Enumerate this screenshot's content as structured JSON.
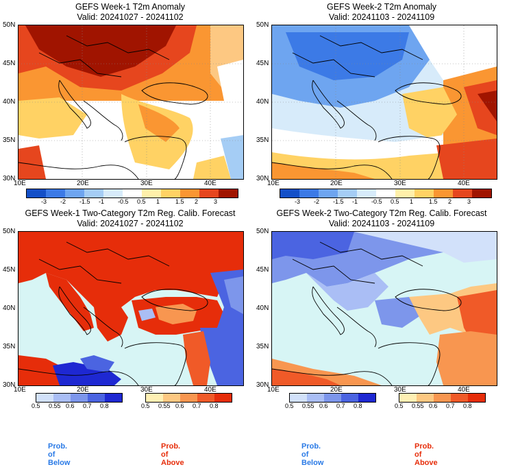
{
  "chart_data": [
    {
      "type": "heatmap",
      "title": "GEFS Week-1 T2m Anomaly",
      "subtitle": "Valid: 20241027 - 20241102",
      "x_ticks": [
        "10E",
        "20E",
        "30E",
        "40E"
      ],
      "y_ticks": [
        "30N",
        "35N",
        "40N",
        "45N",
        "50N"
      ],
      "colorbar_ticks": [
        "-3",
        "-2",
        "-1.5",
        "-1",
        "-0.5",
        "0.5",
        "1",
        "1.5",
        "2",
        "3"
      ],
      "colorbar_colors": [
        "#1450c8",
        "#3c7ae6",
        "#6ea5f0",
        "#a5cdf5",
        "#d7ebfa",
        "#ffffff",
        "#fff0aa",
        "#ffd264",
        "#fa9632",
        "#e6461e",
        "#a01400"
      ]
    },
    {
      "type": "heatmap",
      "title": "GEFS Week-2 T2m Anomaly",
      "subtitle": "Valid: 20241103 - 20241109",
      "x_ticks": [
        "10E",
        "20E",
        "30E",
        "40E"
      ],
      "y_ticks": [
        "30N",
        "35N",
        "40N",
        "45N",
        "50N"
      ],
      "colorbar_ticks": [
        "-3",
        "-2",
        "-1.5",
        "-1",
        "-0.5",
        "0.5",
        "1",
        "1.5",
        "2",
        "3"
      ],
      "colorbar_colors": [
        "#1450c8",
        "#3c7ae6",
        "#6ea5f0",
        "#a5cdf5",
        "#d7ebfa",
        "#ffffff",
        "#fff0aa",
        "#ffd264",
        "#fa9632",
        "#e6461e",
        "#a01400"
      ]
    },
    {
      "type": "heatmap",
      "title": "GEFS Week-1 Two-Category T2m Reg. Calib. Forecast",
      "subtitle": "Valid: 20241027 - 20241102",
      "x_ticks": [
        "10E",
        "20E",
        "30E",
        "40E"
      ],
      "y_ticks": [
        "30N",
        "35N",
        "40N",
        "45N",
        "50N"
      ],
      "below_ticks": [
        "0.5",
        "0.55",
        "0.6",
        "0.7",
        "0.8"
      ],
      "above_ticks": [
        "0.5",
        "0.55",
        "0.6",
        "0.7",
        "0.8"
      ],
      "below_colors": [
        "#d2e1fa",
        "#aabef5",
        "#7d96eb",
        "#4b64e1",
        "#1e28d2"
      ],
      "above_colors": [
        "#fff0b4",
        "#fdc882",
        "#f89650",
        "#f05a28",
        "#e62d0a"
      ],
      "below_label": "Prob. of Below",
      "above_label": "Prob. of Above"
    },
    {
      "type": "heatmap",
      "title": "GEFS Week-2 Two-Category T2m Reg. Calib. Forecast",
      "subtitle": "Valid: 20241103 - 20241109",
      "x_ticks": [
        "10E",
        "20E",
        "30E",
        "40E"
      ],
      "y_ticks": [
        "30N",
        "35N",
        "40N",
        "45N",
        "50N"
      ],
      "below_ticks": [
        "0.5",
        "0.55",
        "0.6",
        "0.7",
        "0.8"
      ],
      "above_ticks": [
        "0.5",
        "0.55",
        "0.6",
        "0.7",
        "0.8"
      ],
      "below_colors": [
        "#d2e1fa",
        "#aabef5",
        "#7d96eb",
        "#4b64e1",
        "#1e28d2"
      ],
      "above_colors": [
        "#fff0b4",
        "#fdc882",
        "#f89650",
        "#f05a28",
        "#e62d0a"
      ],
      "below_label": "Prob. of Below",
      "above_label": "Prob. of Above"
    }
  ],
  "colors": {
    "sea_light": "#d7f5f5",
    "border": "#000000",
    "label_below": "#2a7ae6",
    "label_above": "#e62d0a"
  }
}
